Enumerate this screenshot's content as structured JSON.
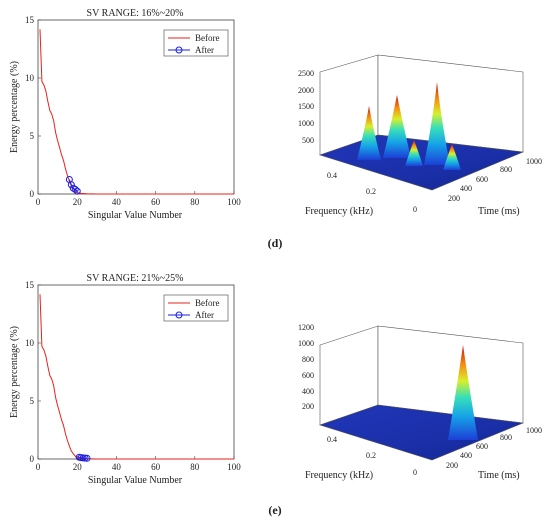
{
  "panels": [
    {
      "caption": "(d)",
      "line_plot": {
        "title": "SV RANGE: 16%~20%",
        "xlabel": "Singular Value Number",
        "ylabel": "Energy percentage (%)",
        "legend": {
          "before": "Before",
          "after": "After"
        },
        "legend_colors": {
          "before": "#e8211d",
          "after": "#1a1ee0"
        }
      },
      "surface_plot": {
        "xlabel": "Frequency (kHz)",
        "ylabel": "Time (ms)"
      }
    },
    {
      "caption": "(e)",
      "line_plot": {
        "title": "SV RANGE: 21%~25%",
        "xlabel": "Singular Value Number",
        "ylabel": "Energy percentage (%)",
        "legend": {
          "before": "Before",
          "after": "After"
        },
        "legend_colors": {
          "before": "#e8211d",
          "after": "#1a1ee0"
        }
      },
      "surface_plot": {
        "xlabel": "Frequency (kHz)",
        "ylabel": "Time (ms)"
      }
    }
  ],
  "chart_data": [
    {
      "type": "line",
      "title": "SV RANGE: 16%~20%",
      "xlabel": "Singular Value Number",
      "ylabel": "Energy percentage (%)",
      "xlim": [
        0,
        100
      ],
      "ylim": [
        0,
        15
      ],
      "x_ticks": [
        0,
        20,
        40,
        60,
        80,
        100
      ],
      "y_ticks": [
        0,
        5,
        10,
        15
      ],
      "grid": false,
      "legend_placement": "top-right",
      "series": [
        {
          "name": "Before",
          "color": "#e8211d",
          "marker": "none",
          "x": [
            1,
            2,
            3,
            4,
            5,
            6,
            7,
            8,
            9,
            10,
            11,
            12,
            13,
            14,
            15,
            16,
            17,
            18,
            19,
            20,
            22,
            25,
            30,
            40,
            60,
            80,
            100
          ],
          "y": [
            14.2,
            9.7,
            9.4,
            8.9,
            8.0,
            7.2,
            6.9,
            6.3,
            5.3,
            4.6,
            4.0,
            3.4,
            2.9,
            2.2,
            1.6,
            1.1,
            0.7,
            0.45,
            0.25,
            0.12,
            0.05,
            0.02,
            0.0,
            0.0,
            0.0,
            0.0,
            0.0
          ]
        },
        {
          "name": "After",
          "color": "#1a1ee0",
          "marker": "circle",
          "x": [
            16,
            17,
            18,
            19,
            20
          ],
          "y": [
            1.25,
            0.8,
            0.5,
            0.4,
            0.25
          ]
        }
      ]
    },
    {
      "type": "surface",
      "xlabel": "Frequency (kHz)",
      "ylabel": "Time (ms)",
      "x_ticks": [
        0,
        0.2,
        0.4
      ],
      "y_ticks": [
        200,
        400,
        600,
        800,
        1000
      ],
      "z_ticks": [
        500,
        1000,
        1500,
        2000,
        2500
      ],
      "zlim": [
        0,
        2500
      ],
      "peaks": [
        {
          "freq": 0.38,
          "time": 150,
          "height": 1350
        },
        {
          "freq": 0.27,
          "time": 280,
          "height": 1800
        },
        {
          "freq": 0.12,
          "time": 330,
          "height": 2250
        },
        {
          "freq": 0.22,
          "time": 420,
          "height": 700
        },
        {
          "freq": 0.07,
          "time": 460,
          "height": 650
        }
      ]
    },
    {
      "type": "line",
      "title": "SV RANGE: 21%~25%",
      "xlabel": "Singular Value Number",
      "ylabel": "Energy percentage (%)",
      "xlim": [
        0,
        100
      ],
      "ylim": [
        0,
        15
      ],
      "x_ticks": [
        0,
        20,
        40,
        60,
        80,
        100
      ],
      "y_ticks": [
        0,
        5,
        10,
        15
      ],
      "grid": false,
      "legend_placement": "top-right",
      "series": [
        {
          "name": "Before",
          "color": "#e8211d",
          "marker": "none",
          "x": [
            1,
            2,
            3,
            4,
            5,
            6,
            7,
            8,
            9,
            10,
            11,
            12,
            13,
            14,
            15,
            16,
            17,
            18,
            19,
            20,
            22,
            25,
            30,
            40,
            60,
            80,
            100
          ],
          "y": [
            14.2,
            9.7,
            9.4,
            8.9,
            8.0,
            7.2,
            6.9,
            6.3,
            5.3,
            4.6,
            4.0,
            3.4,
            2.9,
            2.2,
            1.6,
            1.1,
            0.7,
            0.45,
            0.25,
            0.12,
            0.05,
            0.02,
            0.0,
            0.0,
            0.0,
            0.0,
            0.0
          ]
        },
        {
          "name": "After",
          "color": "#1a1ee0",
          "marker": "circle",
          "x": [
            21,
            22,
            23,
            24,
            25
          ],
          "y": [
            0.15,
            0.12,
            0.1,
            0.08,
            0.06
          ]
        }
      ]
    },
    {
      "type": "surface",
      "xlabel": "Frequency (kHz)",
      "ylabel": "Time (ms)",
      "x_ticks": [
        0,
        0.2,
        0.4
      ],
      "y_ticks": [
        200,
        400,
        600,
        800,
        1000
      ],
      "z_ticks": [
        200,
        400,
        600,
        800,
        1000,
        1200
      ],
      "zlim": [
        0,
        1200
      ],
      "peaks": [
        {
          "freq": 0.05,
          "time": 420,
          "height": 980
        }
      ]
    }
  ]
}
